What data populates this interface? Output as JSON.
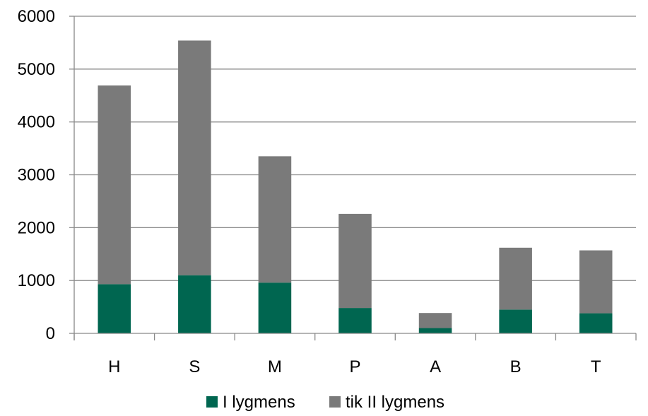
{
  "chart_data": {
    "type": "bar",
    "stacked": true,
    "categories": [
      "H",
      "S",
      "M",
      "P",
      "A",
      "B",
      "T"
    ],
    "series": [
      {
        "name": "I lygmens",
        "color": "#006650",
        "values": [
          930,
          1100,
          960,
          480,
          100,
          450,
          380
        ]
      },
      {
        "name": "tik II lygmens",
        "color": "#7a7a7a",
        "values": [
          3760,
          4440,
          2390,
          1780,
          285,
          1170,
          1190
        ]
      }
    ],
    "ylim": [
      0,
      6000
    ],
    "yticks": [
      0,
      1000,
      2000,
      3000,
      4000,
      5000,
      6000
    ],
    "grid": true,
    "legend_position": "bottom"
  }
}
